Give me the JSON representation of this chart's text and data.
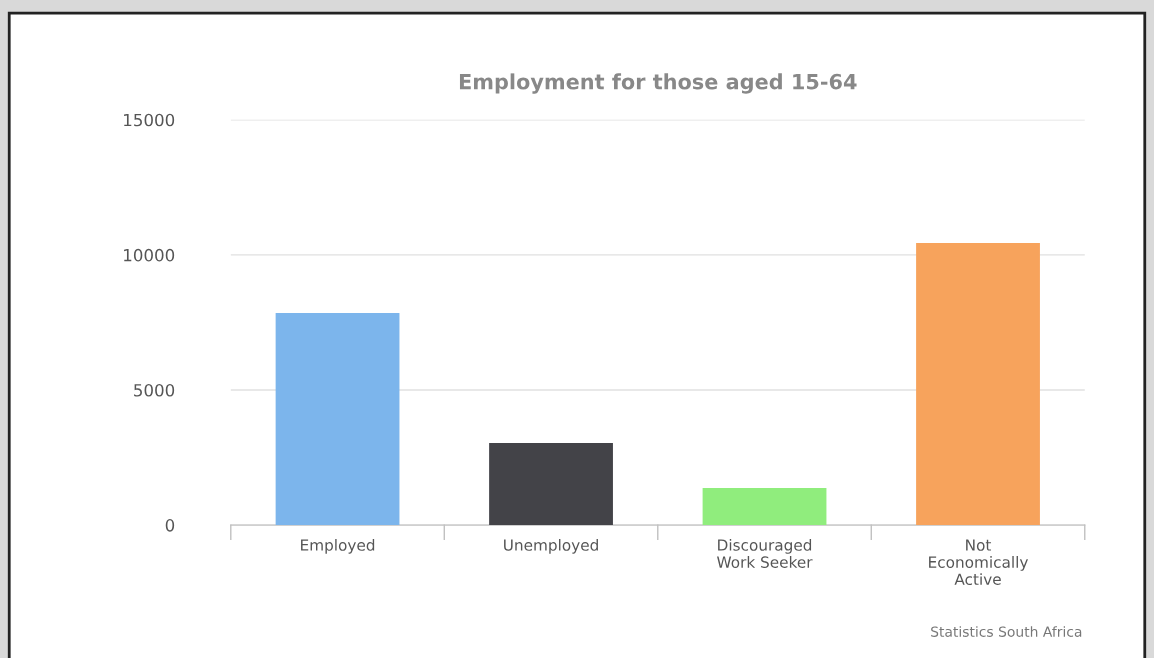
{
  "chart_data": {
    "type": "bar",
    "title": "Employment for those aged 15-64",
    "categories": [
      "Employed",
      "Unemployed",
      "Discouraged\nWork Seeker",
      "Not\nEconomically\nActive"
    ],
    "values": [
      7850,
      3040,
      1370,
      10440
    ],
    "colors": [
      "#7cb5ec",
      "#434348",
      "#90ed7d",
      "#f7a35c"
    ],
    "ylim": [
      0,
      15000
    ],
    "yticks": [
      0,
      5000,
      10000,
      15000
    ],
    "grid": "y",
    "annotations": [
      "Statistics South Africa"
    ]
  }
}
